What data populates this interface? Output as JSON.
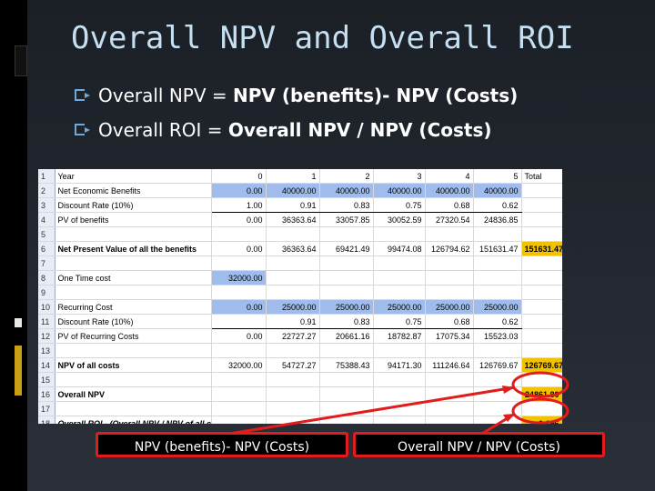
{
  "slide": {
    "title": "Overall NPV and Overall ROI",
    "bullets": [
      {
        "prefix": "Overall NPV = ",
        "strong": "NPV (benefits)- NPV (Costs)"
      },
      {
        "prefix": "Overall ROI = ",
        "strong": "Overall NPV / NPV (Costs)"
      }
    ]
  },
  "spreadsheet": {
    "rows": [
      {
        "n": "1",
        "label": "Year",
        "c": [
          "0",
          "1",
          "2",
          "3",
          "4",
          "5"
        ],
        "total": "Total"
      },
      {
        "n": "2",
        "label": "Net Economic Benefits",
        "c": [
          "0.00",
          "40000.00",
          "40000.00",
          "40000.00",
          "40000.00",
          "40000.00"
        ],
        "total": ""
      },
      {
        "n": "3",
        "label": "Discount Rate (10%)",
        "c": [
          "1.00",
          "0.91",
          "0.83",
          "0.75",
          "0.68",
          "0.62"
        ],
        "total": ""
      },
      {
        "n": "4",
        "label": "PV of benefits",
        "c": [
          "0.00",
          "36363.64",
          "33057.85",
          "30052.59",
          "27320.54",
          "24836.85"
        ],
        "total": ""
      },
      {
        "n": "5",
        "label": "",
        "c": [
          "",
          "",
          "",
          "",
          "",
          ""
        ],
        "total": ""
      },
      {
        "n": "6",
        "label": "Net Present Value of all the benefits",
        "c": [
          "0.00",
          "36363.64",
          "69421.49",
          "99474.08",
          "126794.62",
          "151631.47"
        ],
        "total": "151631.47"
      },
      {
        "n": "7",
        "label": "",
        "c": [
          "",
          "",
          "",
          "",
          "",
          ""
        ],
        "total": ""
      },
      {
        "n": "8",
        "label": "One Time cost",
        "c": [
          "32000.00",
          "",
          "",
          "",
          "",
          ""
        ],
        "total": ""
      },
      {
        "n": "9",
        "label": "",
        "c": [
          "",
          "",
          "",
          "",
          "",
          ""
        ],
        "total": ""
      },
      {
        "n": "10",
        "label": "Recurring Cost",
        "c": [
          "0.00",
          "25000.00",
          "25000.00",
          "25000.00",
          "25000.00",
          "25000.00"
        ],
        "total": ""
      },
      {
        "n": "11",
        "label": "Discount Rate (10%)",
        "c": [
          "",
          "0.91",
          "0.83",
          "0.75",
          "0.68",
          "0.62"
        ],
        "total": ""
      },
      {
        "n": "12",
        "label": "PV of Recurring Costs",
        "c": [
          "0.00",
          "22727.27",
          "20661.16",
          "18782.87",
          "17075.34",
          "15523.03"
        ],
        "total": ""
      },
      {
        "n": "13",
        "label": "",
        "c": [
          "",
          "",
          "",
          "",
          "",
          ""
        ],
        "total": ""
      },
      {
        "n": "14",
        "label": "NPV of all costs",
        "c": [
          "32000.00",
          "54727.27",
          "75388.43",
          "94171.30",
          "111246.64",
          "126769.67"
        ],
        "total": "126769.67"
      },
      {
        "n": "15",
        "label": "",
        "c": [
          "",
          "",
          "",
          "",
          "",
          ""
        ],
        "total": ""
      },
      {
        "n": "16",
        "label": "Overall NPV",
        "c": [
          "",
          "",
          "",
          "",
          "",
          ""
        ],
        "total": "24861.80"
      },
      {
        "n": "17",
        "label": "",
        "c": [
          "",
          "",
          "",
          "",
          "",
          ""
        ],
        "total": ""
      },
      {
        "n": "18",
        "label": "Overall ROI - (Overall NPV / NPV of all costs)",
        "c": [
          "",
          "",
          "",
          "",
          "",
          ""
        ],
        "total": "0.196"
      }
    ]
  },
  "callouts": {
    "left": "NPV (benefits)- NPV (Costs)",
    "right": "Overall NPV / NPV (Costs)"
  },
  "colors": {
    "title": "#c6e0f2",
    "highlight_blue": "#9fbcec",
    "highlight_gold": "#f2c200",
    "annotation_red": "#e21b1b"
  }
}
